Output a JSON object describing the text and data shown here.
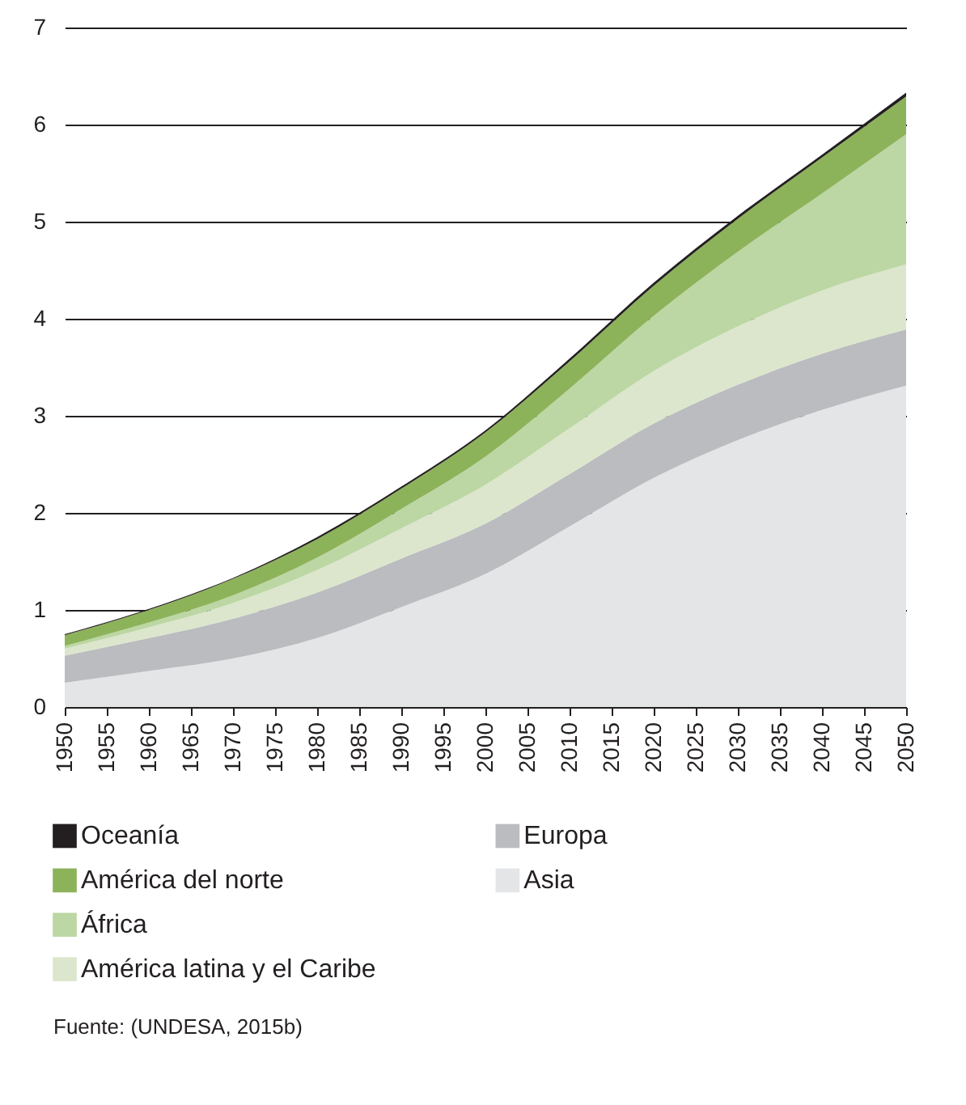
{
  "chart_data": {
    "type": "area",
    "stacked": true,
    "x": [
      1950,
      1960,
      1970,
      1980,
      1990,
      2000,
      2010,
      2020,
      2030,
      2040,
      2050
    ],
    "series": [
      {
        "name": "Asia",
        "color": "#e4e5e7",
        "values": [
          0.25,
          0.37,
          0.5,
          0.71,
          1.03,
          1.37,
          1.86,
          2.36,
          2.75,
          3.06,
          3.31
        ]
      },
      {
        "name": "Europa",
        "color": "#bbbcbf",
        "values": [
          0.28,
          0.34,
          0.41,
          0.47,
          0.5,
          0.52,
          0.54,
          0.56,
          0.57,
          0.58,
          0.58
        ]
      },
      {
        "name": "América latina y el Caribe",
        "color": "#dce6cc",
        "values": [
          0.07,
          0.11,
          0.16,
          0.23,
          0.31,
          0.4,
          0.47,
          0.54,
          0.6,
          0.65,
          0.67
        ]
      },
      {
        "name": "África",
        "color": "#bcd7a3",
        "values": [
          0.03,
          0.05,
          0.08,
          0.13,
          0.2,
          0.29,
          0.41,
          0.57,
          0.77,
          1.0,
          1.34
        ]
      },
      {
        "name": "América del norte",
        "color": "#8db35a",
        "values": [
          0.11,
          0.13,
          0.17,
          0.19,
          0.21,
          0.25,
          0.28,
          0.31,
          0.34,
          0.37,
          0.39
        ]
      },
      {
        "name": "Oceanía",
        "color": "#231f20",
        "values": [
          0.01,
          0.01,
          0.01,
          0.02,
          0.02,
          0.02,
          0.03,
          0.03,
          0.03,
          0.03,
          0.04
        ]
      }
    ],
    "xlim": [
      1950,
      2050
    ],
    "xticks": [
      1950,
      1955,
      1960,
      1965,
      1970,
      1975,
      1980,
      1985,
      1990,
      1995,
      2000,
      2005,
      2010,
      2015,
      2020,
      2025,
      2030,
      2035,
      2040,
      2045,
      2050
    ],
    "ylim": [
      0,
      7
    ],
    "yticks": [
      0,
      1,
      2,
      3,
      4,
      5,
      6,
      7
    ],
    "grid": "y",
    "legend": "bottom",
    "annotations": [
      "Fuente: (UNDESA, 2015b)"
    ]
  }
}
